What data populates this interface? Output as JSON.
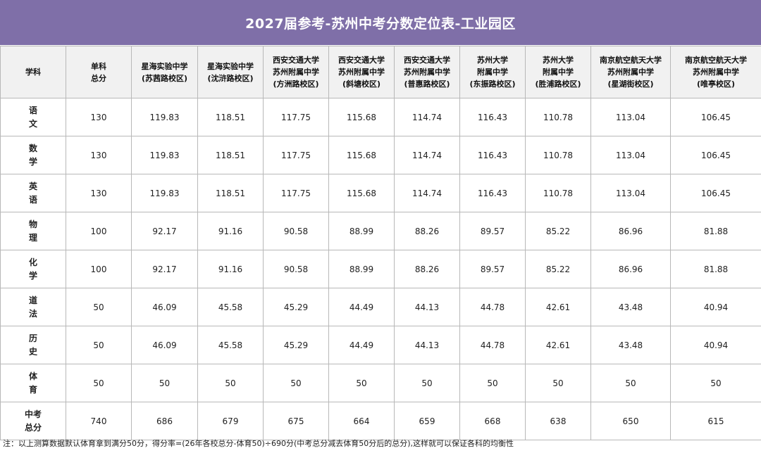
{
  "title": "2027届参考-苏州中考分数定位表-工业园区",
  "headers": [
    [
      "学科"
    ],
    [
      "单科",
      "总分"
    ],
    [
      "星海实验中学",
      "(苏茜路校区)"
    ],
    [
      "星海实验中学",
      "(沈浒路校区)"
    ],
    [
      "西安交通大学",
      "苏州附属中学",
      "(方洲路校区)"
    ],
    [
      "西安交通大学",
      "苏州附属中学",
      "(斜塘校区)"
    ],
    [
      "西安交通大学",
      "苏州附属中学",
      "(普惠路校区)"
    ],
    [
      "苏州大学",
      "附属中学",
      "(东振路校区)"
    ],
    [
      "苏州大学",
      "附属中学",
      "(胜浦路校区)"
    ],
    [
      "南京航空航天大学",
      "苏州附属中学",
      "(星湖街校区)"
    ],
    [
      "南京航空航天大学",
      "苏州附属中学",
      "(唯亭校区)"
    ]
  ],
  "rows": [
    {
      "subject": [
        "语",
        "文"
      ],
      "values": [
        "130",
        "119.83",
        "118.51",
        "117.75",
        "115.68",
        "114.74",
        "116.43",
        "110.78",
        "113.04",
        "106.45"
      ]
    },
    {
      "subject": [
        "数",
        "学"
      ],
      "values": [
        "130",
        "119.83",
        "118.51",
        "117.75",
        "115.68",
        "114.74",
        "116.43",
        "110.78",
        "113.04",
        "106.45"
      ]
    },
    {
      "subject": [
        "英",
        "语"
      ],
      "values": [
        "130",
        "119.83",
        "118.51",
        "117.75",
        "115.68",
        "114.74",
        "116.43",
        "110.78",
        "113.04",
        "106.45"
      ]
    },
    {
      "subject": [
        "物",
        "理"
      ],
      "values": [
        "100",
        "92.17",
        "91.16",
        "90.58",
        "88.99",
        "88.26",
        "89.57",
        "85.22",
        "86.96",
        "81.88"
      ]
    },
    {
      "subject": [
        "化",
        "学"
      ],
      "values": [
        "100",
        "92.17",
        "91.16",
        "90.58",
        "88.99",
        "88.26",
        "89.57",
        "85.22",
        "86.96",
        "81.88"
      ]
    },
    {
      "subject": [
        "道",
        "法"
      ],
      "values": [
        "50",
        "46.09",
        "45.58",
        "45.29",
        "44.49",
        "44.13",
        "44.78",
        "42.61",
        "43.48",
        "40.94"
      ]
    },
    {
      "subject": [
        "历",
        "史"
      ],
      "values": [
        "50",
        "46.09",
        "45.58",
        "45.29",
        "44.49",
        "44.13",
        "44.78",
        "42.61",
        "43.48",
        "40.94"
      ]
    },
    {
      "subject": [
        "体",
        "育"
      ],
      "values": [
        "50",
        "50",
        "50",
        "50",
        "50",
        "50",
        "50",
        "50",
        "50",
        "50"
      ]
    },
    {
      "subject": [
        "中考",
        "总分"
      ],
      "values": [
        "740",
        "686",
        "679",
        "675",
        "664",
        "659",
        "668",
        "638",
        "650",
        "615"
      ]
    }
  ],
  "note": "注：以上测算数据默认体育拿到满分50分，得分率=(26年各校总分-体育50)÷690分(中考总分减去体育50分后的总分),这样就可以保证各科的均衡性",
  "colors": {
    "title_bg": "#7f6fa8",
    "header_bg": "#f1f1f1",
    "border": "#b8b8b8"
  }
}
